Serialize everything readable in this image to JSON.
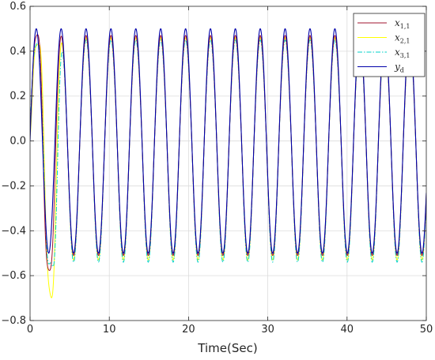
{
  "chart_data": {
    "type": "line",
    "title": "",
    "xlabel": "Time(Sec)",
    "ylabel": "",
    "xlim": [
      0,
      50
    ],
    "ylim": [
      -0.8,
      0.6
    ],
    "xticks": [
      0,
      10,
      20,
      30,
      40,
      50
    ],
    "yticks": [
      -0.8,
      -0.6,
      -0.4,
      -0.2,
      0,
      0.2,
      0.4,
      0.6
    ],
    "xtick_labels": [
      "0",
      "10",
      "20",
      "30",
      "40",
      "50"
    ],
    "ytick_labels": [
      "−0.8",
      "−0.6",
      "−0.4",
      "−0.2",
      "0.0",
      "0.2",
      "0.4",
      "0.6"
    ],
    "grid": true,
    "legend_position": "top-right",
    "reference_signal": {
      "description": "sinusoid",
      "amplitude": 0.5,
      "period": 3.14
    },
    "series": [
      {
        "name": "x_{1,1}",
        "label_main": "x",
        "label_sub": "1,1",
        "color": "#a2142f",
        "dash": "solid",
        "transient_peaks": [
          [
            0.9,
            0.49
          ],
          [
            2.4,
            -0.58
          ]
        ],
        "steady_max": 0.47,
        "steady_min": -0.51
      },
      {
        "name": "x_{2,1}",
        "label_main": "x",
        "label_sub": "2,1",
        "color": "#ffff00",
        "dash": "solid",
        "transient_peaks": [
          [
            1.1,
            0.44
          ],
          [
            2.7,
            -0.7
          ]
        ],
        "steady_max": 0.46,
        "steady_min": -0.53
      },
      {
        "name": "x_{3,1}",
        "label_main": "x",
        "label_sub": "3,1",
        "color": "#00d2c8",
        "dash": "dashdot",
        "transient_peaks": [
          [
            0.8,
            0.45
          ],
          [
            2.9,
            -0.56
          ]
        ],
        "steady_max": 0.45,
        "steady_min": -0.54
      },
      {
        "name": "y_d",
        "label_main": "y",
        "label_sub": "d",
        "color": "#0000aa",
        "dash": "solid",
        "transient_peaks": [],
        "steady_max": 0.5,
        "steady_min": -0.5
      }
    ]
  }
}
